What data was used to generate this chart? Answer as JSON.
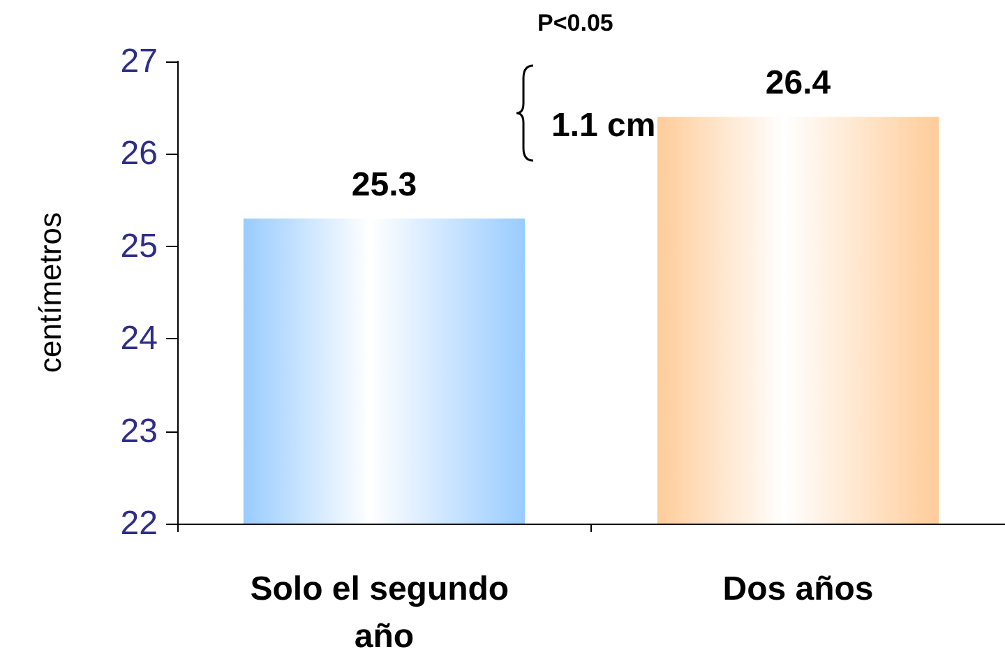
{
  "chart_data": {
    "type": "bar",
    "ylabel": "centímetros",
    "categories": [
      "Solo el segundo año",
      "Dos años"
    ],
    "values": [
      25.3,
      26.4
    ],
    "colors": [
      "#99ccff",
      "#ffcc99"
    ],
    "ylim": [
      22,
      27
    ],
    "yticks": [
      22,
      23,
      24,
      25,
      26,
      27
    ],
    "grid": false,
    "data_labels": true,
    "annotations": [
      "P<0.05",
      "1.1 cm"
    ]
  }
}
